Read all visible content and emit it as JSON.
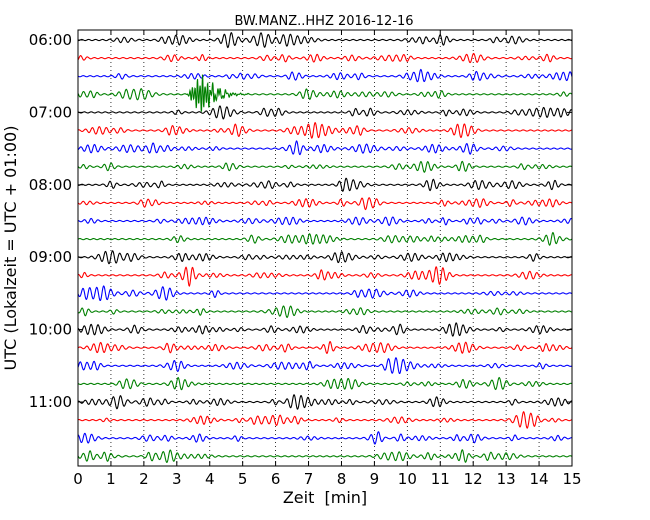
{
  "chart_data": {
    "type": "line",
    "title": "BW.MANZ..HHZ 2016-12-16",
    "xlabel": "Zeit  [min]",
    "ylabel": "UTC (Lokalzeit = UTC + 01:00)",
    "xlim": [
      0,
      15
    ],
    "x_ticks": [
      0,
      1,
      2,
      3,
      4,
      5,
      6,
      7,
      8,
      9,
      10,
      11,
      12,
      13,
      14,
      15
    ],
    "grid": "vertical dotted",
    "trace_interval_minutes": 15,
    "trace_count": 24,
    "trace_start_times": [
      "06:00",
      "06:15",
      "06:30",
      "06:45",
      "07:00",
      "07:15",
      "07:30",
      "07:45",
      "08:00",
      "08:15",
      "08:30",
      "08:45",
      "09:00",
      "09:15",
      "09:30",
      "09:45",
      "10:00",
      "10:15",
      "10:30",
      "10:45",
      "11:00",
      "11:15",
      "11:30",
      "11:45"
    ],
    "y_tick_labels": [
      "06:00",
      "07:00",
      "08:00",
      "09:00",
      "10:00",
      "11:00"
    ],
    "trace_color_cycle": [
      "#000000",
      "#ff0000",
      "#0000ff",
      "#008000"
    ],
    "event": {
      "trace_start": "06:45",
      "start_min": 3.3,
      "end_min": 5.2,
      "peak_min": 3.75,
      "relative_amplitude": 4.5
    }
  }
}
